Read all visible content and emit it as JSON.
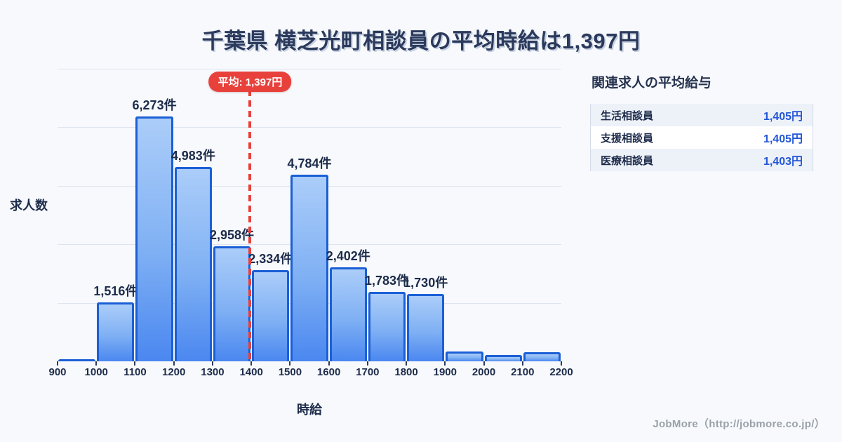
{
  "page": {
    "title": "千葉県 横芝光町相談員の平均時給は1,397円",
    "footer_credit": "JobMore（http://jobmore.co.jp/）",
    "background_color": "#f7f9fc"
  },
  "chart_data": {
    "type": "bar",
    "title": "千葉県 横芝光町相談員の平均時給は1,397円",
    "xlabel": "時給",
    "ylabel": "求人数",
    "x_ticks": [
      900,
      1000,
      1100,
      1200,
      1300,
      1400,
      1500,
      1600,
      1700,
      1800,
      1900,
      2000,
      2100,
      2200
    ],
    "bin_width": 100,
    "categories": [
      "900-1000",
      "1000-1100",
      "1100-1200",
      "1200-1300",
      "1300-1400",
      "1400-1500",
      "1500-1600",
      "1600-1700",
      "1700-1800",
      "1800-1900",
      "1900-2000",
      "2000-2100",
      "2100-2200"
    ],
    "values": [
      40,
      1516,
      6273,
      4983,
      2958,
      2334,
      4784,
      2402,
      1783,
      1730,
      250,
      170,
      240
    ],
    "bar_labels": [
      "",
      "1,516件",
      "6,273件",
      "4,983件",
      "2,958件",
      "2,334件",
      "4,784件",
      "2,402件",
      "1,783件",
      "1,730件",
      "",
      "",
      ""
    ],
    "unlabeled_bar_values_estimated": true,
    "ylim": [
      0,
      7500
    ],
    "gridline_step": 1500,
    "grid": true,
    "legend": "none",
    "average_line": {
      "x_value": 1397,
      "label": "平均: 1,397円",
      "color": "#e8413c"
    },
    "colors": {
      "bar_fill_top": "#abcdf9",
      "bar_fill_bottom": "#4a87f0",
      "bar_border": "#1b5fd6",
      "gridline": "#dde4f0",
      "text": "#1d2b4a"
    }
  },
  "side_panel": {
    "title": "関連求人の平均給与",
    "rows": [
      {
        "label": "生活相談員",
        "value": "1,405円"
      },
      {
        "label": "支援相談員",
        "value": "1,405円"
      },
      {
        "label": "医療相談員",
        "value": "1,403円"
      }
    ],
    "value_color": "#2356d8"
  }
}
